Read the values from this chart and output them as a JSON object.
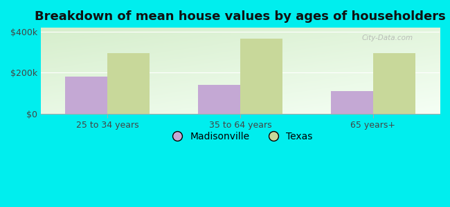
{
  "title": "Breakdown of mean house values by ages of householders",
  "categories": [
    "25 to 34 years",
    "35 to 64 years",
    "65 years+"
  ],
  "madisonville_values": [
    180000,
    140000,
    110000
  ],
  "texas_values": [
    295000,
    365000,
    295000
  ],
  "ylim": [
    0,
    420000
  ],
  "yticks": [
    0,
    200000,
    400000
  ],
  "ytick_labels": [
    "$0",
    "$200k",
    "$400k"
  ],
  "bar_width": 0.32,
  "madisonville_color": "#c4a8d4",
  "texas_color": "#c8d89a",
  "background_color": "#00eeee",
  "title_fontsize": 13,
  "legend_labels": [
    "Madisonville",
    "Texas"
  ],
  "watermark": "City-Data.com"
}
